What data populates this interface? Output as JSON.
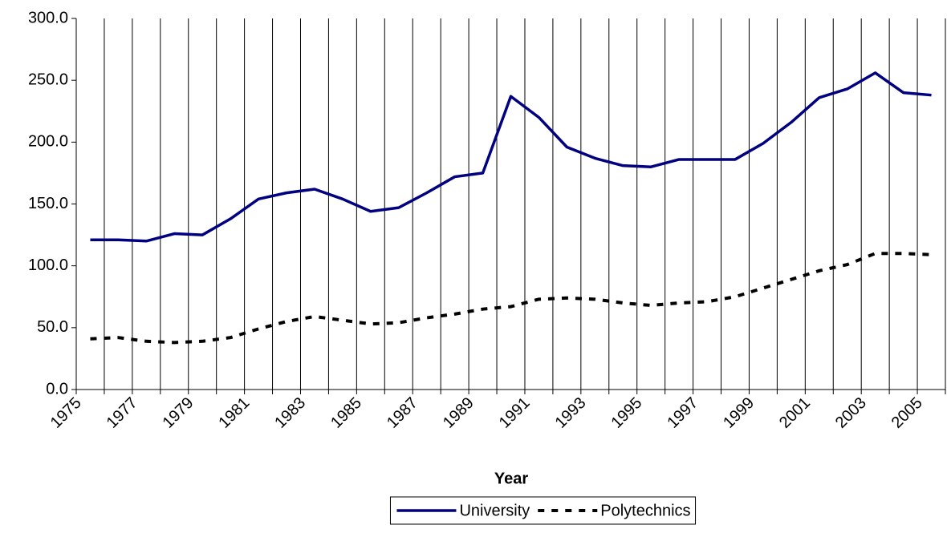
{
  "chart_data": {
    "type": "line",
    "x_label": "Year",
    "categories": [
      "1975",
      null,
      "1977",
      null,
      "1979",
      null,
      "1981",
      null,
      "1983",
      null,
      "1985",
      null,
      "1987",
      null,
      "1989",
      null,
      "1991",
      null,
      "1993",
      null,
      "1995",
      null,
      "1997",
      null,
      "1999",
      null,
      "2001",
      null,
      "2003",
      null,
      "2005"
    ],
    "series": [
      {
        "name": "University",
        "color": "#000080",
        "line_style": "solid",
        "values": [
          121,
          121,
          120,
          126,
          125,
          138,
          154,
          159,
          162,
          154,
          144,
          147,
          159,
          172,
          175,
          237,
          220,
          196,
          187,
          181,
          180,
          186,
          186,
          186,
          199,
          216,
          236,
          243,
          256,
          240,
          238
        ]
      },
      {
        "name": "Polytechnics",
        "color": "#000000",
        "line_style": "dashed",
        "values": [
          41,
          42,
          39,
          38,
          39,
          42,
          49,
          55,
          59,
          56,
          53,
          54,
          58,
          61,
          65,
          67,
          73,
          74,
          73,
          70,
          68,
          70,
          71,
          75,
          82,
          89,
          96,
          101,
          110,
          110,
          109
        ]
      }
    ],
    "ylim": [
      0,
      300
    ],
    "yticks": [
      {
        "value": 0,
        "label": "0.0"
      },
      {
        "value": 50,
        "label": "50.0"
      },
      {
        "value": 100,
        "label": "100.0"
      },
      {
        "value": 150,
        "label": "150.0"
      },
      {
        "value": 200,
        "label": "200.0"
      },
      {
        "value": 250,
        "label": "250.0"
      },
      {
        "value": 300,
        "label": "300.0"
      }
    ],
    "x_grid": true,
    "legend": "bottom"
  }
}
